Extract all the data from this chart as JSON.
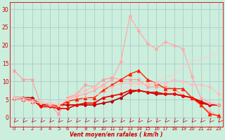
{
  "xlabel": "Vent moyen/en rafales ( km/h )",
  "x": [
    0,
    1,
    2,
    3,
    4,
    5,
    6,
    7,
    8,
    9,
    10,
    11,
    12,
    13,
    14,
    15,
    16,
    17,
    18,
    19,
    20,
    21,
    22,
    23
  ],
  "background_color": "#cceedd",
  "grid_color": "#aacccc",
  "lines": [
    {
      "y": [
        13.0,
        10.5,
        10.5,
        3.5,
        3.5,
        1.0,
        5.5,
        6.5,
        9.0,
        8.5,
        10.5,
        11.0,
        10.5,
        10.5,
        10.5,
        8.5,
        8.5,
        8.5,
        8.0,
        6.0,
        5.5,
        3.5,
        1.5,
        0.5
      ],
      "color": "#ff9999",
      "marker": "x",
      "lw": 0.8,
      "ms": 3
    },
    {
      "y": [
        5.5,
        5.5,
        5.5,
        3.5,
        3.5,
        3.5,
        3.5,
        3.5,
        3.5,
        3.5,
        4.0,
        4.5,
        5.5,
        7.0,
        7.5,
        7.0,
        6.5,
        6.5,
        6.5,
        6.0,
        5.5,
        4.0,
        3.5,
        3.5
      ],
      "color": "#bb0000",
      "marker": "D",
      "lw": 1.2,
      "ms": 2
    },
    {
      "y": [
        5.5,
        5.0,
        5.0,
        3.0,
        3.0,
        2.5,
        2.5,
        3.5,
        4.0,
        4.0,
        5.5,
        6.0,
        6.5,
        7.5,
        7.5,
        7.0,
        7.0,
        6.5,
        6.5,
        6.0,
        5.5,
        4.5,
        3.5,
        3.5
      ],
      "color": "#ee0000",
      "marker": "D",
      "lw": 1.2,
      "ms": 2
    },
    {
      "y": [
        5.5,
        5.0,
        4.5,
        4.0,
        3.5,
        3.0,
        4.5,
        5.0,
        5.5,
        5.5,
        7.5,
        9.0,
        10.5,
        12.0,
        13.0,
        10.5,
        9.5,
        8.0,
        8.0,
        8.0,
        5.5,
        3.5,
        1.0,
        0.5
      ],
      "color": "#ff2200",
      "marker": "^",
      "lw": 1.0,
      "ms": 3
    },
    {
      "y": [
        5.5,
        5.0,
        4.5,
        4.0,
        3.5,
        3.5,
        5.0,
        6.0,
        6.5,
        7.5,
        9.0,
        10.5,
        15.5,
        28.0,
        24.0,
        20.5,
        19.0,
        21.0,
        20.0,
        19.0,
        11.5,
        5.5,
        4.0,
        3.5
      ],
      "color": "#ffaaaa",
      "marker": "D",
      "lw": 0.9,
      "ms": 2
    },
    {
      "y": [
        5.5,
        5.0,
        4.5,
        4.0,
        4.0,
        3.5,
        5.0,
        6.5,
        7.5,
        8.5,
        8.5,
        8.5,
        9.5,
        9.5,
        9.5,
        9.0,
        9.5,
        9.5,
        10.5,
        10.0,
        9.0,
        9.0,
        8.5,
        6.5
      ],
      "color": "#ffbbbb",
      "marker": "D",
      "lw": 0.8,
      "ms": 2
    },
    {
      "y": [
        5.5,
        5.5,
        5.0,
        4.5,
        4.0,
        3.5,
        5.0,
        5.5,
        5.5,
        6.0,
        7.0,
        7.5,
        8.0,
        8.5,
        9.0,
        9.5,
        10.0,
        11.0,
        12.0,
        14.0,
        15.5,
        16.0,
        17.0,
        18.0
      ],
      "color": "#ffcccc",
      "marker": null,
      "lw": 0.8,
      "ms": 0
    }
  ],
  "ylim": [
    -2.5,
    32
  ],
  "yticks": [
    0,
    5,
    10,
    15,
    20,
    25,
    30
  ],
  "xlim": [
    -0.5,
    23.5
  ]
}
